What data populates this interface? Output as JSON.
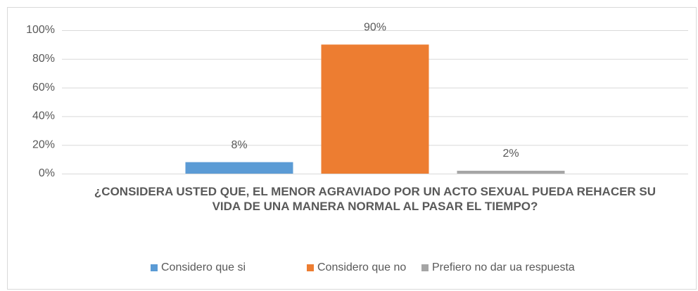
{
  "chart_data": {
    "type": "bar",
    "categories": [
      "¿CONSIDERA USTED QUE, EL MENOR AGRAVIADO POR UN ACTO SEXUAL PUEDA REHACER SU VIDA DE UNA MANERA NORMAL AL PASAR EL TIEMPO?"
    ],
    "series": [
      {
        "name": "Considero que si",
        "color": "#5b9bd5",
        "values": [
          8
        ],
        "value_labels": [
          "8%"
        ]
      },
      {
        "name": "Considero que no",
        "color": "#ed7d31",
        "values": [
          90
        ],
        "value_labels": [
          "90%"
        ]
      },
      {
        "name": "Prefiero no dar ua respuesta",
        "color": "#a5a5a5",
        "values": [
          2
        ],
        "value_labels": [
          "2%"
        ]
      }
    ],
    "ylim": [
      0,
      100
    ],
    "yticks": [
      {
        "value": 0,
        "label": "0%"
      },
      {
        "value": 20,
        "label": "20%"
      },
      {
        "value": 40,
        "label": "40%"
      },
      {
        "value": 60,
        "label": "60%"
      },
      {
        "value": 80,
        "label": "80%"
      },
      {
        "value": 100,
        "label": "100%"
      }
    ],
    "grid": true,
    "legend": "bottom"
  }
}
